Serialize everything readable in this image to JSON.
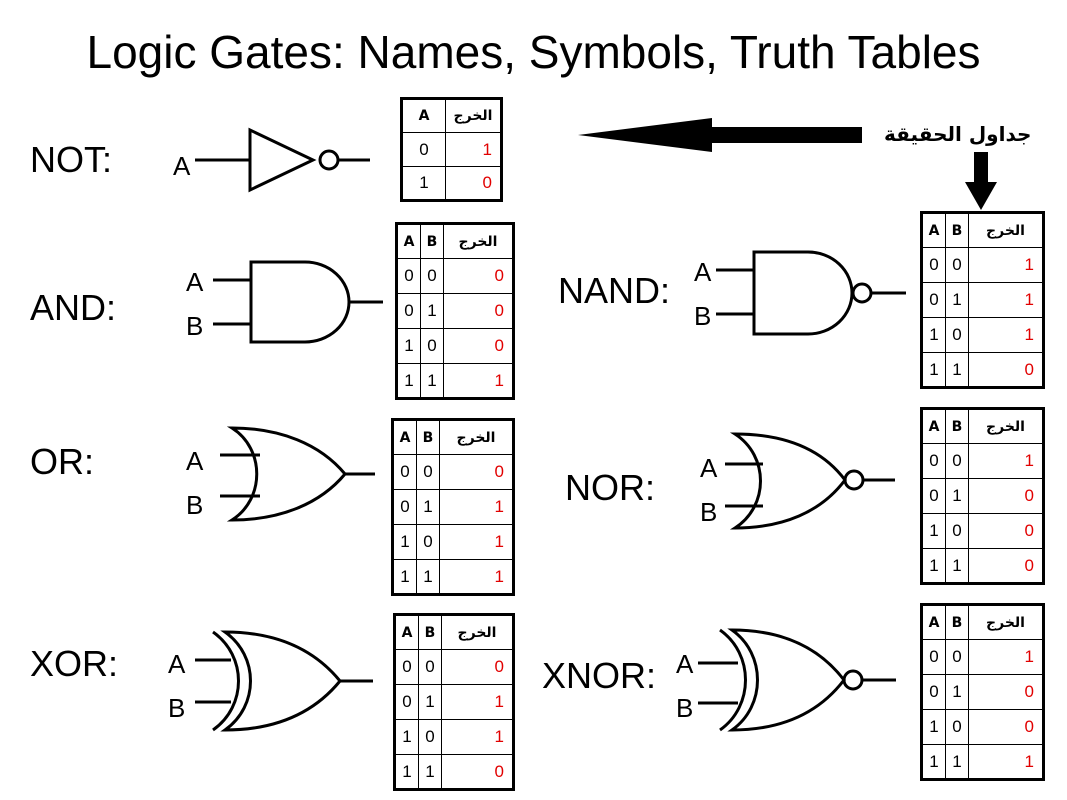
{
  "title": "Logic Gates: Names, Symbols, Truth Tables",
  "truth_tables_callout": "جداول الحقيقة",
  "gates": {
    "not": {
      "label": "NOT:",
      "input_a": "A",
      "table": {
        "headers": [
          "A",
          "الخرج"
        ],
        "rows": [
          [
            "0",
            "1"
          ],
          [
            "1",
            "0"
          ]
        ]
      }
    },
    "and": {
      "label": "AND:",
      "input_a": "A",
      "input_b": "B",
      "table": {
        "headers": [
          "A",
          "B",
          "الخرج"
        ],
        "rows": [
          [
            "0",
            "0",
            "0"
          ],
          [
            "0",
            "1",
            "0"
          ],
          [
            "1",
            "0",
            "0"
          ],
          [
            "1",
            "1",
            "1"
          ]
        ]
      }
    },
    "or": {
      "label": "OR:",
      "input_a": "A",
      "input_b": "B",
      "table": {
        "headers": [
          "A",
          "B",
          "الخرج"
        ],
        "rows": [
          [
            "0",
            "0",
            "0"
          ],
          [
            "0",
            "1",
            "1"
          ],
          [
            "1",
            "0",
            "1"
          ],
          [
            "1",
            "1",
            "1"
          ]
        ]
      }
    },
    "xor": {
      "label": "XOR:",
      "input_a": "A",
      "input_b": "B",
      "table": {
        "headers": [
          "A",
          "B",
          "الخرج"
        ],
        "rows": [
          [
            "0",
            "0",
            "0"
          ],
          [
            "0",
            "1",
            "1"
          ],
          [
            "1",
            "0",
            "1"
          ],
          [
            "1",
            "1",
            "0"
          ]
        ]
      }
    },
    "nand": {
      "label": "NAND:",
      "input_a": "A",
      "input_b": "B",
      "table": {
        "headers": [
          "A",
          "B",
          "الخرج"
        ],
        "rows": [
          [
            "0",
            "0",
            "1"
          ],
          [
            "0",
            "1",
            "1"
          ],
          [
            "1",
            "0",
            "1"
          ],
          [
            "1",
            "1",
            "0"
          ]
        ]
      }
    },
    "nor": {
      "label": "NOR:",
      "input_a": "A",
      "input_b": "B",
      "table": {
        "headers": [
          "A",
          "B",
          "الخرج"
        ],
        "rows": [
          [
            "0",
            "0",
            "1"
          ],
          [
            "0",
            "1",
            "0"
          ],
          [
            "1",
            "0",
            "0"
          ],
          [
            "1",
            "1",
            "0"
          ]
        ]
      }
    },
    "xnor": {
      "label": "XNOR:",
      "input_a": "A",
      "input_b": "B",
      "table": {
        "headers": [
          "A",
          "B",
          "الخرج"
        ],
        "rows": [
          [
            "0",
            "0",
            "1"
          ],
          [
            "0",
            "1",
            "0"
          ],
          [
            "1",
            "0",
            "0"
          ],
          [
            "1",
            "1",
            "1"
          ]
        ]
      }
    }
  }
}
